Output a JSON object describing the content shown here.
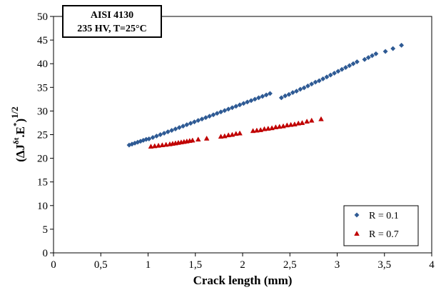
{
  "chart_data": {
    "type": "scatter",
    "xlabel": "Crack length (mm)",
    "ylabel": {
      "open": "(",
      "delta": "ΔJ",
      "delta_sup": "δt",
      "mid": ".E",
      "mid_sup": "*",
      "close": ")",
      "power": "1/2"
    },
    "xlim": [
      0,
      4
    ],
    "ylim": [
      0,
      50
    ],
    "x_ticks": [
      "0",
      "0,5",
      "1",
      "1,5",
      "2",
      "2,5",
      "3",
      "3,5",
      "4"
    ],
    "x_tick_values": [
      0,
      0.5,
      1,
      1.5,
      2,
      2.5,
      3,
      3.5,
      4
    ],
    "y_ticks": [
      "0",
      "5",
      "10",
      "15",
      "20",
      "25",
      "30",
      "35",
      "40",
      "45",
      "50"
    ],
    "y_tick_values": [
      0,
      5,
      10,
      15,
      20,
      25,
      30,
      35,
      40,
      45,
      50
    ],
    "grid": false,
    "legend_position": "bottom-right",
    "annotation": [
      "AISI 4130",
      "235 HV, T=25°C"
    ],
    "series": [
      {
        "name": "R = 0.1",
        "marker": "diamond",
        "color": "#2e5a94",
        "x": [
          0.8,
          0.83,
          0.86,
          0.89,
          0.92,
          0.95,
          0.98,
          1.01,
          1.05,
          1.09,
          1.13,
          1.17,
          1.21,
          1.25,
          1.29,
          1.33,
          1.37,
          1.41,
          1.45,
          1.49,
          1.53,
          1.57,
          1.61,
          1.65,
          1.69,
          1.73,
          1.77,
          1.81,
          1.85,
          1.89,
          1.93,
          1.97,
          2.01,
          2.05,
          2.09,
          2.13,
          2.17,
          2.21,
          2.25,
          2.29,
          2.41,
          2.45,
          2.49,
          2.53,
          2.57,
          2.61,
          2.65,
          2.69,
          2.73,
          2.77,
          2.81,
          2.85,
          2.89,
          2.93,
          2.97,
          3.01,
          3.05,
          3.09,
          3.13,
          3.17,
          3.21,
          3.29,
          3.33,
          3.37,
          3.41,
          3.51,
          3.59,
          3.68
        ],
        "y": [
          22.8,
          23.0,
          23.2,
          23.4,
          23.6,
          23.8,
          24.0,
          24.1,
          24.4,
          24.7,
          25.0,
          25.3,
          25.6,
          25.9,
          26.2,
          26.5,
          26.8,
          27.1,
          27.4,
          27.7,
          28.0,
          28.3,
          28.6,
          28.9,
          29.2,
          29.5,
          29.8,
          30.1,
          30.4,
          30.7,
          31.0,
          31.3,
          31.6,
          31.9,
          32.2,
          32.5,
          32.8,
          33.1,
          33.4,
          33.7,
          32.8,
          33.2,
          33.5,
          33.9,
          34.2,
          34.6,
          34.9,
          35.3,
          35.7,
          36.1,
          36.4,
          36.8,
          37.2,
          37.6,
          38.0,
          38.4,
          38.8,
          39.2,
          39.6,
          40.0,
          40.4,
          40.9,
          41.3,
          41.7,
          42.1,
          42.6,
          43.2,
          43.9
        ]
      },
      {
        "name": "R = 0.7",
        "marker": "triangle",
        "color": "#c00000",
        "x": [
          1.03,
          1.07,
          1.11,
          1.15,
          1.19,
          1.23,
          1.26,
          1.29,
          1.32,
          1.35,
          1.38,
          1.41,
          1.44,
          1.47,
          1.53,
          1.62,
          1.77,
          1.81,
          1.85,
          1.89,
          1.93,
          1.97,
          2.11,
          2.15,
          2.19,
          2.23,
          2.27,
          2.31,
          2.35,
          2.39,
          2.43,
          2.47,
          2.51,
          2.55,
          2.59,
          2.63,
          2.68,
          2.73,
          2.83
        ],
        "y": [
          22.5,
          22.6,
          22.7,
          22.8,
          22.9,
          23.0,
          23.1,
          23.2,
          23.3,
          23.4,
          23.5,
          23.6,
          23.7,
          23.8,
          24.0,
          24.2,
          24.6,
          24.7,
          24.9,
          25.0,
          25.2,
          25.3,
          25.8,
          25.9,
          26.0,
          26.2,
          26.3,
          26.4,
          26.6,
          26.7,
          26.8,
          27.0,
          27.1,
          27.2,
          27.4,
          27.5,
          27.8,
          28.0,
          28.3
        ]
      }
    ]
  }
}
